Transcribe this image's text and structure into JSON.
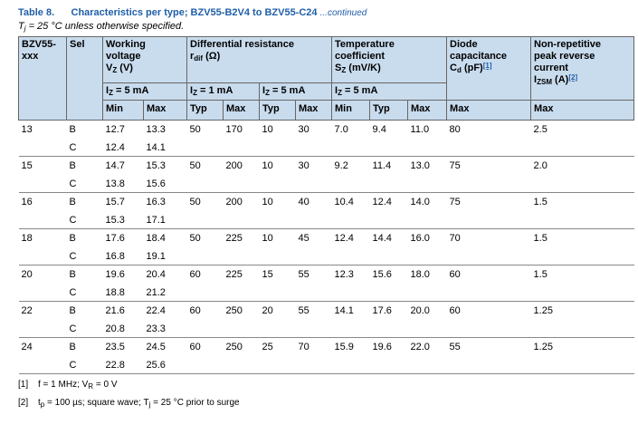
{
  "title": {
    "number": "Table 8.",
    "text": "Characteristics per type; BZV55-B2V4 to BZV55-C24",
    "continued": "...continued"
  },
  "condition": [
    {
      "text": "T"
    },
    {
      "sub": "j"
    },
    {
      "text": " = 25 °C unless otherwise specified."
    }
  ],
  "table": {
    "headers": {
      "type": [
        [
          {
            "text": "BZV55-"
          }
        ],
        [
          {
            "text": "xxx"
          }
        ]
      ],
      "sel": [
        [
          {
            "text": "Sel"
          }
        ]
      ],
      "vz": [
        [
          {
            "text": "Working"
          }
        ],
        [
          {
            "text": "voltage"
          }
        ],
        [
          {
            "text": "V"
          },
          {
            "sub": "Z"
          },
          {
            "text": " (V)"
          }
        ]
      ],
      "rdif": [
        [
          {
            "text": "Differential resistance"
          }
        ],
        [
          {
            "text": "r"
          },
          {
            "sub": "dif"
          },
          {
            "text": " (Ω)"
          }
        ]
      ],
      "sz": [
        [
          {
            "text": "Temperature"
          }
        ],
        [
          {
            "text": "coefficient"
          }
        ],
        [
          {
            "text": "S"
          },
          {
            "sub": "Z"
          },
          {
            "text": " (mV/K)"
          }
        ]
      ],
      "cd": [
        [
          {
            "text": "Diode"
          }
        ],
        [
          {
            "text": "capacitance"
          }
        ],
        [
          {
            "text": "C"
          },
          {
            "sub": "d"
          },
          {
            "text": " (pF)"
          },
          {
            "link": "[1]"
          }
        ]
      ],
      "izsm": [
        [
          {
            "text": "Non-repetitive"
          }
        ],
        [
          {
            "text": "peak reverse"
          }
        ],
        [
          {
            "text": "current"
          }
        ],
        [
          {
            "text": "I"
          },
          {
            "sub": "ZSM"
          },
          {
            "text": " (A)"
          },
          {
            "link": "[2]"
          }
        ]
      ],
      "conditions": [
        [
          {
            "text": "I"
          },
          {
            "sub": "Z"
          },
          {
            "text": " = 5 mA"
          }
        ],
        [
          {
            "text": "I"
          },
          {
            "sub": "Z"
          },
          {
            "text": " = 1 mA"
          }
        ],
        [
          {
            "text": "I"
          },
          {
            "sub": "Z"
          },
          {
            "text": " = 5 mA"
          }
        ],
        [
          {
            "text": "I"
          },
          {
            "sub": "Z"
          },
          {
            "text": " = 5 mA"
          }
        ]
      ],
      "limits": [
        "Min",
        "Max",
        "Typ",
        "Max",
        "Typ",
        "Max",
        "Min",
        "Typ",
        "Max",
        "Max",
        "Max"
      ]
    },
    "groups": [
      {
        "type": "13",
        "rows": [
          [
            "B",
            "12.7",
            "13.3",
            "50",
            "170",
            "10",
            "30",
            "7.0",
            "9.4",
            "11.0",
            "80",
            "2.5"
          ],
          [
            "C",
            "12.4",
            "14.1"
          ]
        ]
      },
      {
        "type": "15",
        "rows": [
          [
            "B",
            "14.7",
            "15.3",
            "50",
            "200",
            "10",
            "30",
            "9.2",
            "11.4",
            "13.0",
            "75",
            "2.0"
          ],
          [
            "C",
            "13.8",
            "15.6"
          ]
        ]
      },
      {
        "type": "16",
        "rows": [
          [
            "B",
            "15.7",
            "16.3",
            "50",
            "200",
            "10",
            "40",
            "10.4",
            "12.4",
            "14.0",
            "75",
            "1.5"
          ],
          [
            "C",
            "15.3",
            "17.1"
          ]
        ]
      },
      {
        "type": "18",
        "rows": [
          [
            "B",
            "17.6",
            "18.4",
            "50",
            "225",
            "10",
            "45",
            "12.4",
            "14.4",
            "16.0",
            "70",
            "1.5"
          ],
          [
            "C",
            "16.8",
            "19.1"
          ]
        ]
      },
      {
        "type": "20",
        "rows": [
          [
            "B",
            "19.6",
            "20.4",
            "60",
            "225",
            "15",
            "55",
            "12.3",
            "15.6",
            "18.0",
            "60",
            "1.5"
          ],
          [
            "C",
            "18.8",
            "21.2"
          ]
        ]
      },
      {
        "type": "22",
        "rows": [
          [
            "B",
            "21.6",
            "22.4",
            "60",
            "250",
            "20",
            "55",
            "14.1",
            "17.6",
            "20.0",
            "60",
            "1.25"
          ],
          [
            "C",
            "20.8",
            "23.3"
          ]
        ]
      },
      {
        "type": "24",
        "rows": [
          [
            "B",
            "23.5",
            "24.5",
            "60",
            "250",
            "25",
            "70",
            "15.9",
            "19.6",
            "22.0",
            "55",
            "1.25"
          ],
          [
            "C",
            "22.8",
            "25.6"
          ]
        ]
      }
    ]
  },
  "footnotes": [
    {
      "mark": "[1]",
      "parts": [
        {
          "text": "f = 1 MHz; V"
        },
        {
          "sub": "R"
        },
        {
          "text": " = 0 V"
        }
      ]
    },
    {
      "mark": "[2]",
      "parts": [
        {
          "text": "t"
        },
        {
          "sub": "p"
        },
        {
          "text": " = 100 µs; square wave; T"
        },
        {
          "sub": "j"
        },
        {
          "text": " = 25 °C prior to surge"
        }
      ]
    }
  ]
}
